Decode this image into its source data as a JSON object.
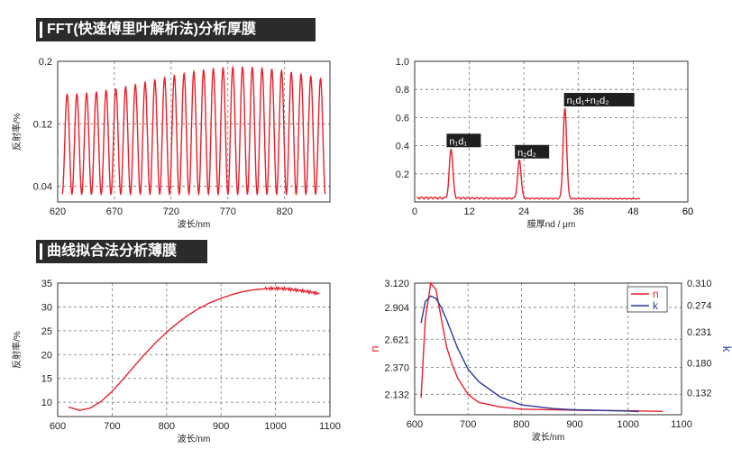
{
  "sections": {
    "fft_title": "FFT(快速傅里叶解析法)分析厚膜",
    "fit_title": "曲线拟合法分析薄膜"
  },
  "colors": {
    "red": "#e8202a",
    "blue": "#2a3a9c",
    "grid": "#333333"
  },
  "chart_data": [
    {
      "type": "line",
      "xlabel": "波长/nm",
      "ylabel": "反射率/%",
      "xlim": [
        620,
        860
      ],
      "ylim": [
        0.02,
        0.2
      ],
      "xticks": [
        620,
        670,
        720,
        770,
        820
      ],
      "yticks": [
        0.04,
        0.12,
        0.2
      ],
      "ytick_labels": [
        "0.04",
        "0.12",
        "0.2"
      ],
      "grid": "dashed",
      "color": "#e8202a",
      "series": [
        {
          "fringe_min": 0.03,
          "fringe_max": 0.175,
          "fringe_count": 27,
          "x_start": 624,
          "x_end": 856
        }
      ]
    },
    {
      "type": "line",
      "xlabel": "膜厚nd / μm",
      "ylabel": "",
      "xlim": [
        0,
        60
      ],
      "ylim": [
        0,
        1.0
      ],
      "xticks": [
        0,
        12,
        24,
        36,
        48,
        60
      ],
      "yticks": [
        0.2,
        0.4,
        0.6,
        0.8,
        1.0
      ],
      "ytick_labels": [
        "0.2",
        "0.4",
        "0.6",
        "0.8",
        "1.0"
      ],
      "grid": "dashed",
      "color": "#e8202a",
      "peaks": [
        {
          "x": 8,
          "y": 0.37,
          "label": "n₁d₁"
        },
        {
          "x": 23,
          "y": 0.29,
          "label": "n₂d₂"
        },
        {
          "x": 33,
          "y": 0.66,
          "label": "n₁d₁+n₂d₂"
        }
      ]
    },
    {
      "type": "line",
      "xlabel": "波长/nm",
      "ylabel": "反射率/%",
      "xlim": [
        600,
        1100
      ],
      "ylim": [
        7,
        35
      ],
      "xticks": [
        600,
        700,
        800,
        900,
        1000,
        1100
      ],
      "yticks": [
        10,
        15,
        20,
        25,
        30,
        35
      ],
      "grid": "dashed",
      "color": "#e8202a",
      "points": [
        [
          620,
          9.0
        ],
        [
          640,
          8.3
        ],
        [
          660,
          8.8
        ],
        [
          680,
          10.2
        ],
        [
          700,
          12.3
        ],
        [
          720,
          14.8
        ],
        [
          740,
          17.5
        ],
        [
          760,
          20.1
        ],
        [
          780,
          22.5
        ],
        [
          800,
          24.7
        ],
        [
          820,
          26.6
        ],
        [
          840,
          28.3
        ],
        [
          860,
          29.7
        ],
        [
          880,
          30.9
        ],
        [
          900,
          31.8
        ],
        [
          920,
          32.6
        ],
        [
          940,
          33.2
        ],
        [
          960,
          33.6
        ],
        [
          980,
          33.8
        ],
        [
          1000,
          33.9
        ],
        [
          1020,
          33.8
        ],
        [
          1040,
          33.5
        ],
        [
          1060,
          33.2
        ],
        [
          1080,
          32.8
        ]
      ]
    },
    {
      "type": "line",
      "xlabel": "波长/nm",
      "ylabel": "n",
      "y2label": "k",
      "xlim": [
        600,
        1100
      ],
      "ylim": [
        1.95,
        3.12
      ],
      "y2lim": [
        0.096,
        0.31
      ],
      "xticks": [
        600,
        700,
        800,
        900,
        1000,
        1100
      ],
      "yticks": [
        2.132,
        2.37,
        2.621,
        2.904,
        3.12
      ],
      "ytick_labels": [
        "2.132",
        "2.370",
        "2.621",
        "2.904",
        "3.120"
      ],
      "y2ticks": [
        0.132,
        0.18,
        0.231,
        0.274,
        0.31
      ],
      "y2tick_labels": [
        "0.132",
        "0.180",
        "0.231",
        "0.274",
        "0.310"
      ],
      "grid": "dashed",
      "legend_position": "top-right",
      "series": [
        {
          "name": "n",
          "color": "#e8202a",
          "axis": "left",
          "points": [
            [
              612,
              2.1
            ],
            [
              620,
              2.8
            ],
            [
              630,
              3.12
            ],
            [
              640,
              3.06
            ],
            [
              650,
              2.8
            ],
            [
              660,
              2.55
            ],
            [
              670,
              2.4
            ],
            [
              680,
              2.28
            ],
            [
              700,
              2.13
            ],
            [
              720,
              2.06
            ],
            [
              760,
              2.02
            ],
            [
              800,
              2.0
            ],
            [
              900,
              1.99
            ],
            [
              1000,
              1.985
            ],
            [
              1065,
              1.98
            ]
          ]
        },
        {
          "name": "k",
          "color": "#2a3a9c",
          "axis": "right",
          "points": [
            [
              612,
              0.245
            ],
            [
              620,
              0.28
            ],
            [
              630,
              0.289
            ],
            [
              640,
              0.285
            ],
            [
              650,
              0.27
            ],
            [
              660,
              0.25
            ],
            [
              680,
              0.205
            ],
            [
              700,
              0.17
            ],
            [
              720,
              0.15
            ],
            [
              760,
              0.125
            ],
            [
              800,
              0.112
            ],
            [
              860,
              0.106
            ],
            [
              900,
              0.104
            ],
            [
              1000,
              0.102
            ],
            [
              1020,
              0.101
            ]
          ]
        }
      ]
    }
  ]
}
